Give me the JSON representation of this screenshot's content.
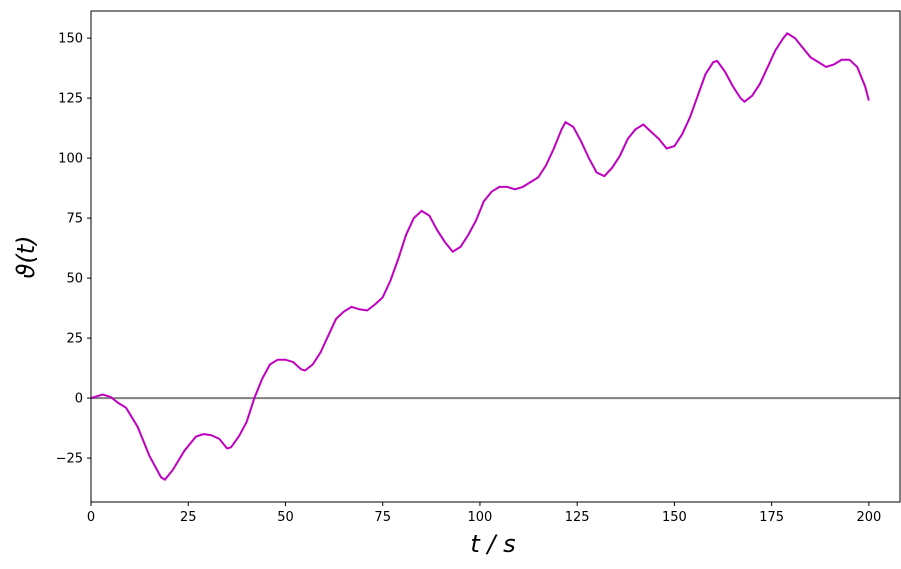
{
  "chart_data": {
    "type": "line",
    "x_label": "t / s",
    "y_label": "ϑ(t)",
    "x": [
      0,
      3,
      5,
      7,
      9,
      12,
      15,
      18,
      19,
      21,
      24,
      27,
      29,
      31,
      33,
      35,
      36,
      38,
      40,
      42,
      44,
      46,
      48,
      50,
      52,
      54,
      55,
      57,
      59,
      61,
      63,
      65,
      67,
      69,
      71,
      73,
      75,
      77,
      79,
      81,
      83,
      85,
      87,
      89,
      91,
      93,
      95,
      97,
      99,
      101,
      103,
      105,
      107,
      109,
      111,
      113,
      115,
      117,
      119,
      121,
      122,
      124,
      126,
      128,
      130,
      132,
      134,
      136,
      138,
      140,
      142,
      144,
      146,
      148,
      150,
      152,
      154,
      156,
      158,
      160,
      161,
      163,
      165,
      167,
      168,
      170,
      172,
      174,
      176,
      178,
      179,
      181,
      183,
      185,
      187,
      189,
      191,
      193,
      195,
      197,
      199,
      200
    ],
    "series": [
      {
        "color": "#c000c0",
        "values": [
          0,
          1.5,
          0.5,
          -2,
          -4,
          -12,
          -24,
          -33,
          -34,
          -30,
          -22,
          -16,
          -15,
          -15.5,
          -17,
          -21,
          -20.5,
          -16,
          -10,
          0,
          8,
          14,
          16,
          16,
          15,
          12,
          11.5,
          14,
          19,
          26,
          33,
          36,
          38,
          37,
          36.5,
          39,
          42,
          49,
          58,
          68,
          75,
          78,
          76,
          70,
          65,
          61,
          63,
          68,
          74,
          82,
          86,
          88,
          88,
          87,
          88,
          90,
          92,
          97,
          104,
          112,
          115,
          113,
          107,
          100,
          94,
          92.5,
          96,
          101,
          108,
          112,
          114,
          111,
          108,
          104,
          105,
          110,
          117,
          126,
          135,
          140,
          140.5,
          136,
          130,
          125,
          123.5,
          126,
          131,
          138,
          145,
          150,
          152,
          150,
          146,
          142,
          140,
          138,
          139,
          141,
          141,
          138,
          130,
          124
        ]
      }
    ],
    "hline": {
      "value": 0,
      "color": "#808080"
    },
    "xlim": [
      0,
      208
    ],
    "ylim": [
      -43.3,
      161.3
    ],
    "xticks": [
      0,
      25,
      50,
      75,
      100,
      125,
      150,
      175,
      200
    ],
    "yticks": [
      {
        "value": -25,
        "label": "−25"
      },
      0,
      25,
      50,
      75,
      100,
      125,
      150
    ]
  }
}
